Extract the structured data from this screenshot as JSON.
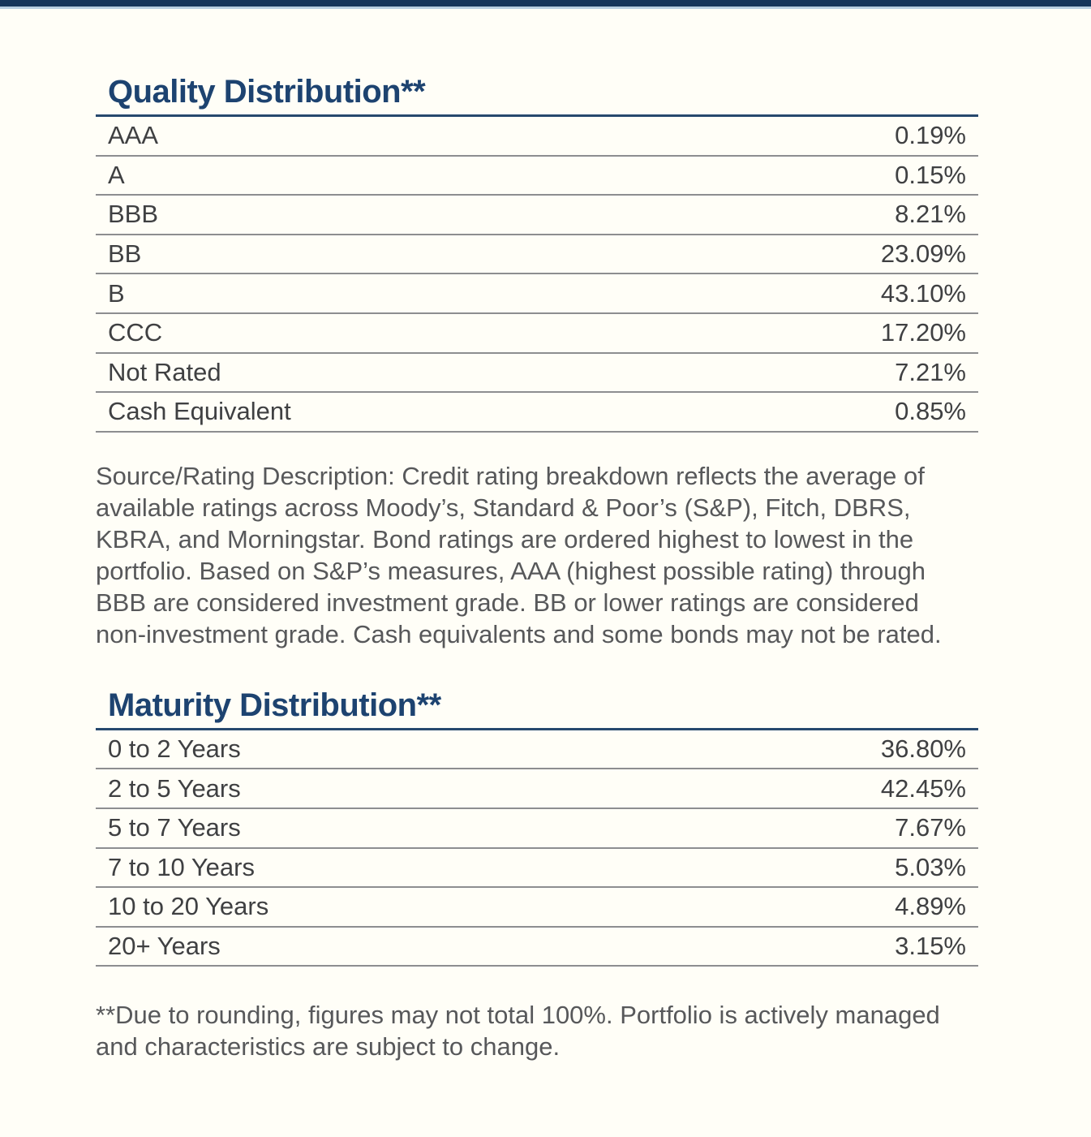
{
  "page": {
    "background": "#fffef7"
  },
  "top_bar": {
    "bar_color": "#17365a",
    "accent_line_color": "#b9cfe0"
  },
  "colors": {
    "title_navy": "#1d4370",
    "title_rule_navy": "#27496e",
    "row_divider_gray": "#8d8e90",
    "row_text": "#3f4042",
    "paragraph_text": "#57585a"
  },
  "quality_distribution": {
    "title": "Quality Distribution**",
    "rows": [
      {
        "label": "AAA",
        "value": "0.19%"
      },
      {
        "label": "A",
        "value": "0.15%"
      },
      {
        "label": "BBB",
        "value": "8.21%"
      },
      {
        "label": "BB",
        "value": "23.09%"
      },
      {
        "label": "B",
        "value": "43.10%"
      },
      {
        "label": "CCC",
        "value": "17.20%"
      },
      {
        "label": "Not Rated",
        "value": "7.21%"
      },
      {
        "label": "Cash Equivalent",
        "value": "0.85%"
      }
    ],
    "source_note": "Source/Rating Description: Credit rating breakdown reflects the average of available ratings across Moody’s, Standard & Poor’s (S&P), Fitch, DBRS, KBRA, and Morningstar. Bond ratings are ordered highest to lowest in the portfolio. Based on S&P’s measures, AAA (highest possible rating) through BBB are considered investment grade. BB or lower ratings are considered non-investment grade. Cash equivalents and some bonds may not be rated."
  },
  "maturity_distribution": {
    "title": "Maturity Distribution**",
    "rows": [
      {
        "label": "0 to 2 Years",
        "value": "36.80%"
      },
      {
        "label": "2 to 5 Years",
        "value": "42.45%"
      },
      {
        "label": "5 to 7 Years",
        "value": "7.67%"
      },
      {
        "label": "7 to 10 Years",
        "value": "5.03%"
      },
      {
        "label": "10 to 20 Years",
        "value": "4.89%"
      },
      {
        "label": "20+ Years",
        "value": "3.15%"
      }
    ]
  },
  "footnote": "**Due to rounding, figures may not total 100%. Portfolio is actively managed and characteristics are subject to change."
}
